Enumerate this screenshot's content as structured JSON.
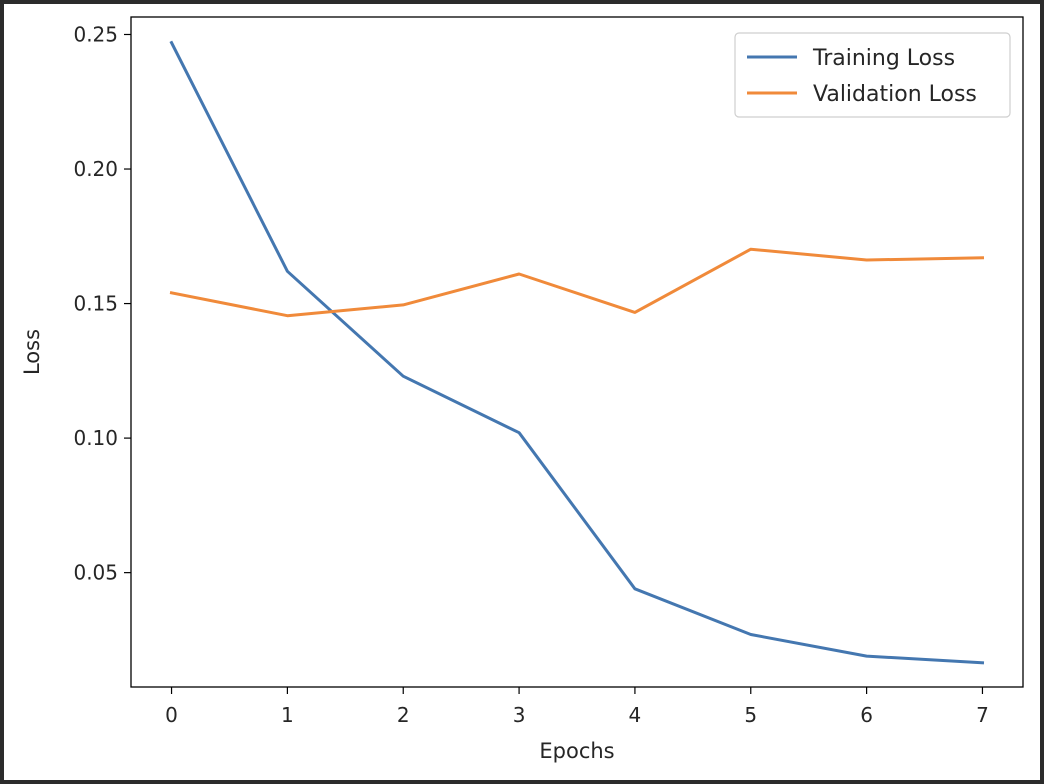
{
  "chart_data": {
    "type": "line",
    "title": "",
    "xlabel": "Epochs",
    "ylabel": "Loss",
    "x": [
      0,
      1,
      2,
      3,
      4,
      5,
      6,
      7
    ],
    "xlim": [
      -0.35,
      7.35
    ],
    "ylim": [
      0.0075,
      0.2565
    ],
    "xticks": [
      0,
      1,
      2,
      3,
      4,
      5,
      6,
      7
    ],
    "yticks": [
      0.05,
      0.1,
      0.15,
      0.2,
      0.25
    ],
    "xtick_labels": [
      "0",
      "1",
      "2",
      "3",
      "4",
      "5",
      "6",
      "7"
    ],
    "ytick_labels": [
      "0.05",
      "0.10",
      "0.15",
      "0.20",
      "0.25"
    ],
    "grid": false,
    "legend_position": "top-right",
    "series": [
      {
        "name": "Training Loss",
        "color": "#4477b0",
        "values": [
          0.247,
          0.162,
          0.123,
          0.102,
          0.044,
          0.027,
          0.019,
          0.0165
        ]
      },
      {
        "name": "Validation Loss",
        "color": "#f08a3a",
        "values": [
          0.154,
          0.1455,
          0.1495,
          0.161,
          0.1467,
          0.1702,
          0.1662,
          0.167
        ]
      }
    ]
  }
}
